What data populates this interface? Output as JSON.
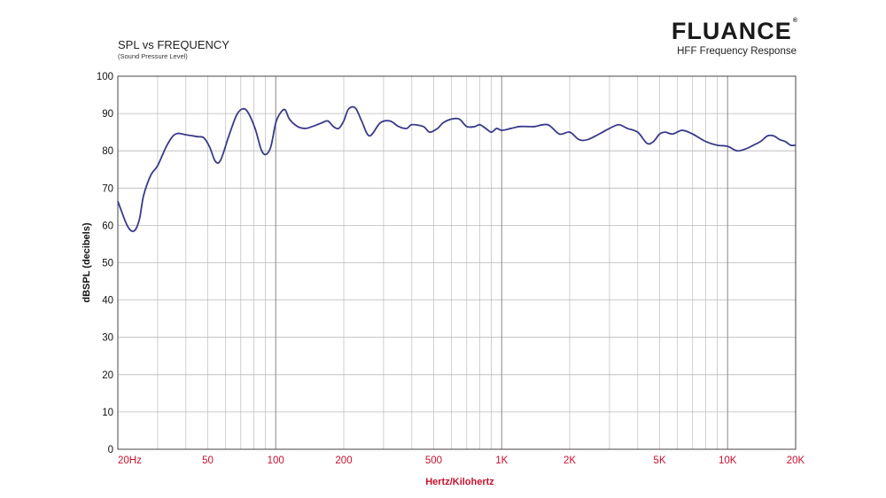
{
  "brand": {
    "name": "FLUANCE",
    "mark": "®"
  },
  "chart_data": {
    "type": "line",
    "title": "SPL vs FREQUENCY",
    "subtitle": "(Sound Pressure Level)",
    "chart_title": "HFF Frequency Response",
    "xlabel": "Hertz/Kilohertz",
    "ylabel": "dBSPL (decibels)",
    "xscale": "log",
    "xlim": [
      20,
      20000
    ],
    "ylim": [
      0,
      100
    ],
    "grid": true,
    "line_color": "#3a3a8c",
    "tick_color": "#c8102e",
    "y_ticks": [
      0,
      10,
      20,
      30,
      40,
      50,
      60,
      70,
      80,
      90,
      100
    ],
    "x_ticks": [
      {
        "value": 20,
        "label": "20Hz"
      },
      {
        "value": 50,
        "label": "50"
      },
      {
        "value": 100,
        "label": "100"
      },
      {
        "value": 200,
        "label": "200"
      },
      {
        "value": 500,
        "label": "500"
      },
      {
        "value": 1000,
        "label": "1K"
      },
      {
        "value": 2000,
        "label": "2K"
      },
      {
        "value": 5000,
        "label": "5K"
      },
      {
        "value": 10000,
        "label": "10K"
      },
      {
        "value": 20000,
        "label": "20K"
      }
    ],
    "series": [
      {
        "x": [
          20,
          21,
          22,
          23,
          24,
          25,
          26,
          28,
          30,
          33,
          36,
          40,
          45,
          48,
          51,
          54,
          57,
          62,
          67,
          71,
          75,
          81,
          86,
          90,
          95,
          100,
          105,
          110,
          115,
          125,
          135,
          145,
          160,
          170,
          180,
          190,
          200,
          210,
          225,
          240,
          260,
          290,
          320,
          350,
          380,
          400,
          450,
          480,
          520,
          550,
          600,
          650,
          700,
          760,
          800,
          850,
          900,
          950,
          1000,
          1100,
          1200,
          1300,
          1400,
          1600,
          1800,
          2000,
          2200,
          2400,
          2700,
          3000,
          3300,
          3600,
          4000,
          4400,
          4700,
          5000,
          5300,
          5700,
          6300,
          7000,
          8000,
          9000,
          10000,
          11000,
          12000,
          13000,
          14000,
          15000,
          16000,
          17000,
          18000,
          19000,
          20000
        ],
        "y": [
          66.5,
          63,
          60,
          58.5,
          59,
          62,
          68,
          73.5,
          76,
          81.5,
          84.5,
          84.3,
          83.8,
          83.5,
          81,
          77.2,
          77.5,
          84,
          89.5,
          91.2,
          90.5,
          86,
          80.5,
          79,
          81,
          87.5,
          90.2,
          91,
          88.5,
          86.5,
          86,
          86.5,
          87.5,
          88,
          86.5,
          86,
          88,
          91.2,
          91.5,
          88,
          84,
          87.5,
          88,
          86.5,
          86,
          87,
          86.5,
          85,
          86,
          87.5,
          88.5,
          88.5,
          86.5,
          86.5,
          87,
          86,
          85,
          86,
          85.5,
          86,
          86.5,
          86.5,
          86.5,
          87,
          84.5,
          85,
          83,
          83,
          84.5,
          86,
          87,
          86,
          85,
          82,
          82.5,
          84.5,
          85,
          84.5,
          85.5,
          84.5,
          82.5,
          81.5,
          81.2,
          80,
          80.5,
          81.5,
          82.5,
          84,
          84,
          83,
          82.5,
          81.5,
          81.5
        ]
      }
    ]
  }
}
